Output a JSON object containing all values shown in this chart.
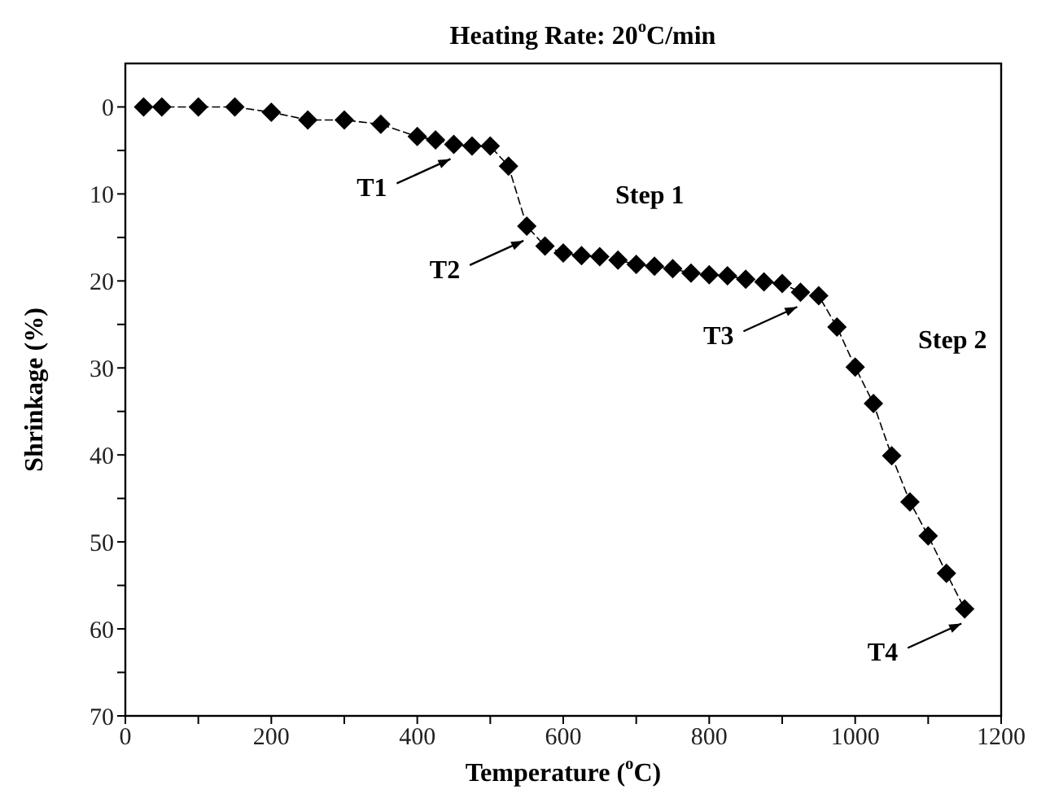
{
  "chart_data": {
    "type": "line",
    "title": "Heating Rate: 20$^{o}$C/min",
    "xlabel": "Temperature ($^{o}$C)",
    "ylabel": "Shrinkage (%)",
    "x": [
      25,
      50,
      100,
      150,
      200,
      250,
      300,
      350,
      400,
      425,
      450,
      475,
      500,
      525,
      550,
      575,
      600,
      625,
      650,
      675,
      700,
      725,
      750,
      775,
      800,
      825,
      850,
      875,
      900,
      925,
      950,
      975,
      1000,
      1025,
      1050,
      1075,
      1100,
      1125,
      1150
    ],
    "series": [
      {
        "color": "#000000",
        "values": [
          0,
          0,
          0,
          0,
          0.6,
          1.5,
          1.5,
          2.0,
          3.4,
          3.8,
          4.3,
          4.5,
          4.5,
          6.8,
          13.7,
          16.0,
          16.8,
          17.1,
          17.2,
          17.6,
          18.1,
          18.3,
          18.6,
          19.1,
          19.3,
          19.4,
          19.8,
          20.1,
          20.3,
          21.3,
          21.7,
          25.3,
          29.9,
          34.1,
          40.1,
          45.4,
          49.3,
          53.6,
          57.7
        ]
      }
    ],
    "xlim": [
      0,
      1200
    ],
    "xticks": [
      0,
      {
        "value": 100,
        "label": null
      },
      200,
      {
        "value": 300,
        "label": null
      },
      400,
      {
        "value": 500,
        "label": null
      },
      600,
      {
        "value": 700,
        "label": null
      },
      800,
      {
        "value": 900,
        "label": null
      },
      1000,
      {
        "value": 1100,
        "label": null
      },
      1200
    ],
    "ylim": [
      70,
      -5
    ],
    "yticks": [
      0,
      {
        "value": 5,
        "label": null
      },
      10,
      {
        "value": 15,
        "label": null
      },
      20,
      {
        "value": 25,
        "label": null
      },
      30,
      {
        "value": 35,
        "label": null
      },
      40,
      {
        "value": 45,
        "label": null
      },
      50,
      {
        "value": 55,
        "label": null
      },
      60,
      {
        "value": 65,
        "label": null
      },
      70
    ],
    "marker": "diamond",
    "line_style": "dashed",
    "grid": false,
    "legend": false,
    "annotations": [
      {
        "text": "T1",
        "x": 450,
        "y": 4.3
      },
      {
        "text": "T2",
        "x": 550,
        "y": 13.7
      },
      {
        "text": "T3",
        "x": 925,
        "y": 21.3
      },
      {
        "text": "T4",
        "x": 1150,
        "y": 57.7
      },
      "Step 1",
      "Step 2"
    ]
  }
}
